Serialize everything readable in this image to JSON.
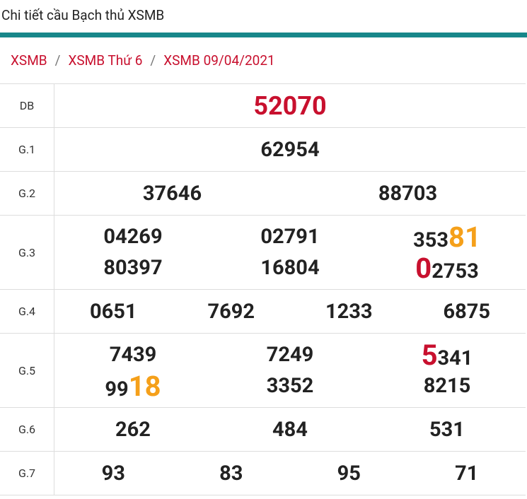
{
  "header": {
    "title": "Chi tiết cầu Bạch thủ XSMB"
  },
  "breadcrumb": [
    "XSMB",
    "XSMB Thứ 6",
    "XSMB 09/04/2021"
  ],
  "rows": [
    {
      "label": "DB",
      "lines": [
        [
          [
            {
              "text": "52070",
              "color": "#c8102e"
            }
          ]
        ]
      ]
    },
    {
      "label": "G.1",
      "lines": [
        [
          [
            {
              "text": "62954"
            }
          ]
        ]
      ]
    },
    {
      "label": "G.2",
      "lines": [
        [
          [
            {
              "text": "37646"
            }
          ],
          [
            {
              "text": "88703"
            }
          ]
        ]
      ]
    },
    {
      "label": "G.3",
      "lines": [
        [
          [
            {
              "text": "04269"
            }
          ],
          [
            {
              "text": "02791"
            }
          ],
          [
            {
              "text": "353"
            },
            {
              "text": "81",
              "color": "#f5a01a"
            }
          ]
        ],
        [
          [
            {
              "text": "80397"
            }
          ],
          [
            {
              "text": "16804"
            }
          ],
          [
            {
              "text": "0",
              "color": "#c8102e"
            },
            {
              "text": "2753"
            }
          ]
        ]
      ]
    },
    {
      "label": "G.4",
      "lines": [
        [
          [
            {
              "text": "0651"
            }
          ],
          [
            {
              "text": "7692"
            }
          ],
          [
            {
              "text": "1233"
            }
          ],
          [
            {
              "text": "6875"
            }
          ]
        ]
      ]
    },
    {
      "label": "G.5",
      "lines": [
        [
          [
            {
              "text": "7439"
            }
          ],
          [
            {
              "text": "7249"
            }
          ],
          [
            {
              "text": "5",
              "color": "#c8102e"
            },
            {
              "text": "341"
            }
          ]
        ],
        [
          [
            {
              "text": "99"
            },
            {
              "text": "18",
              "color": "#f5a01a"
            }
          ],
          [
            {
              "text": "3352"
            }
          ],
          [
            {
              "text": "8215"
            }
          ]
        ]
      ]
    },
    {
      "label": "G.6",
      "lines": [
        [
          [
            {
              "text": "262"
            }
          ],
          [
            {
              "text": "484"
            }
          ],
          [
            {
              "text": "531"
            }
          ]
        ]
      ]
    },
    {
      "label": "G.7",
      "lines": [
        [
          [
            {
              "text": "93"
            }
          ],
          [
            {
              "text": "83"
            }
          ],
          [
            {
              "text": "95"
            }
          ],
          [
            {
              "text": "71"
            }
          ]
        ]
      ]
    }
  ]
}
